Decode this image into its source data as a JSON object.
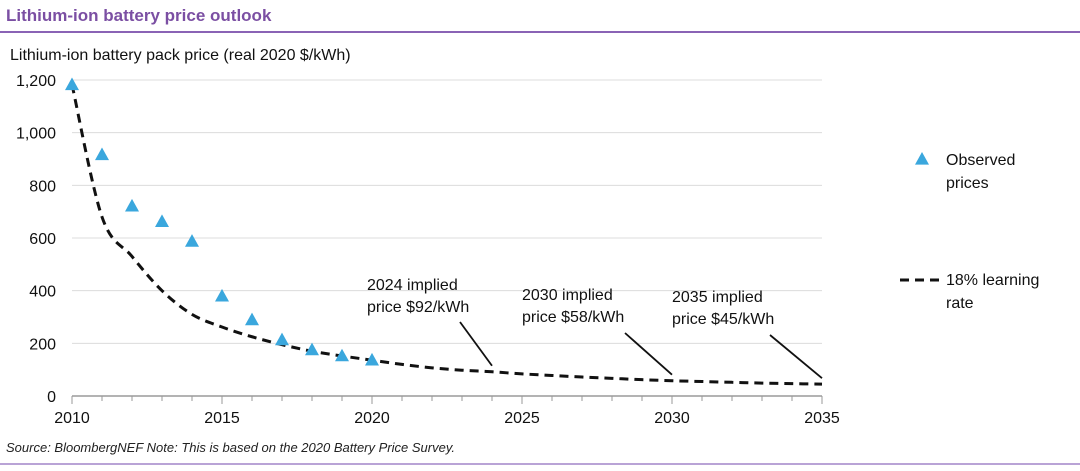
{
  "header": {
    "title": "Lithium-ion battery price outlook"
  },
  "footer": {
    "source": "Source: BloombergNEF Note: This is based on the 2020 Battery Price Survey."
  },
  "chart_data": {
    "type": "scatter",
    "ylabel": "Lithium-ion battery pack price (real 2020 $/kWh)",
    "xlim": [
      2010,
      2035
    ],
    "ylim": [
      0,
      1200
    ],
    "x_ticks": [
      2010,
      2015,
      2020,
      2025,
      2030,
      2035
    ],
    "y_ticks": [
      0,
      200,
      400,
      600,
      800,
      1000,
      1200
    ],
    "y_tick_labels": [
      "0",
      "200",
      "400",
      "600",
      "800",
      "1,000",
      "1,200"
    ],
    "grid": true,
    "legend_position": "right",
    "series": [
      {
        "name": "Observed prices",
        "kind": "scatter",
        "marker": "triangle",
        "color": "#3aa7dd",
        "x": [
          2010,
          2011,
          2012,
          2013,
          2014,
          2015,
          2016,
          2017,
          2018,
          2019,
          2020
        ],
        "y": [
          1183,
          917,
          722,
          663,
          588,
          380,
          290,
          214,
          176,
          153,
          137
        ]
      },
      {
        "name": "18% learning rate",
        "kind": "line",
        "style": "dashed",
        "color": "#111111",
        "x": [
          2010,
          2011,
          2012,
          2013,
          2014,
          2015,
          2016,
          2017,
          2018,
          2019,
          2020,
          2021,
          2022,
          2023,
          2024,
          2025,
          2026,
          2027,
          2028,
          2029,
          2030,
          2031,
          2032,
          2033,
          2034,
          2035
        ],
        "y": [
          1183,
          680,
          530,
          400,
          310,
          262,
          225,
          195,
          170,
          152,
          136,
          120,
          107,
          98,
          92,
          84,
          78,
          72,
          67,
          62,
          58,
          55,
          52,
          49,
          47,
          45
        ]
      }
    ],
    "annotations": [
      {
        "text_lines": [
          "2024 implied",
          "price $92/kWh"
        ],
        "x": 2024,
        "y": 92
      },
      {
        "text_lines": [
          "2030 implied",
          "price $58/kWh"
        ],
        "x": 2030,
        "y": 58
      },
      {
        "text_lines": [
          "2035 implied",
          "price $45/kWh"
        ],
        "x": 2035,
        "y": 45
      }
    ]
  }
}
